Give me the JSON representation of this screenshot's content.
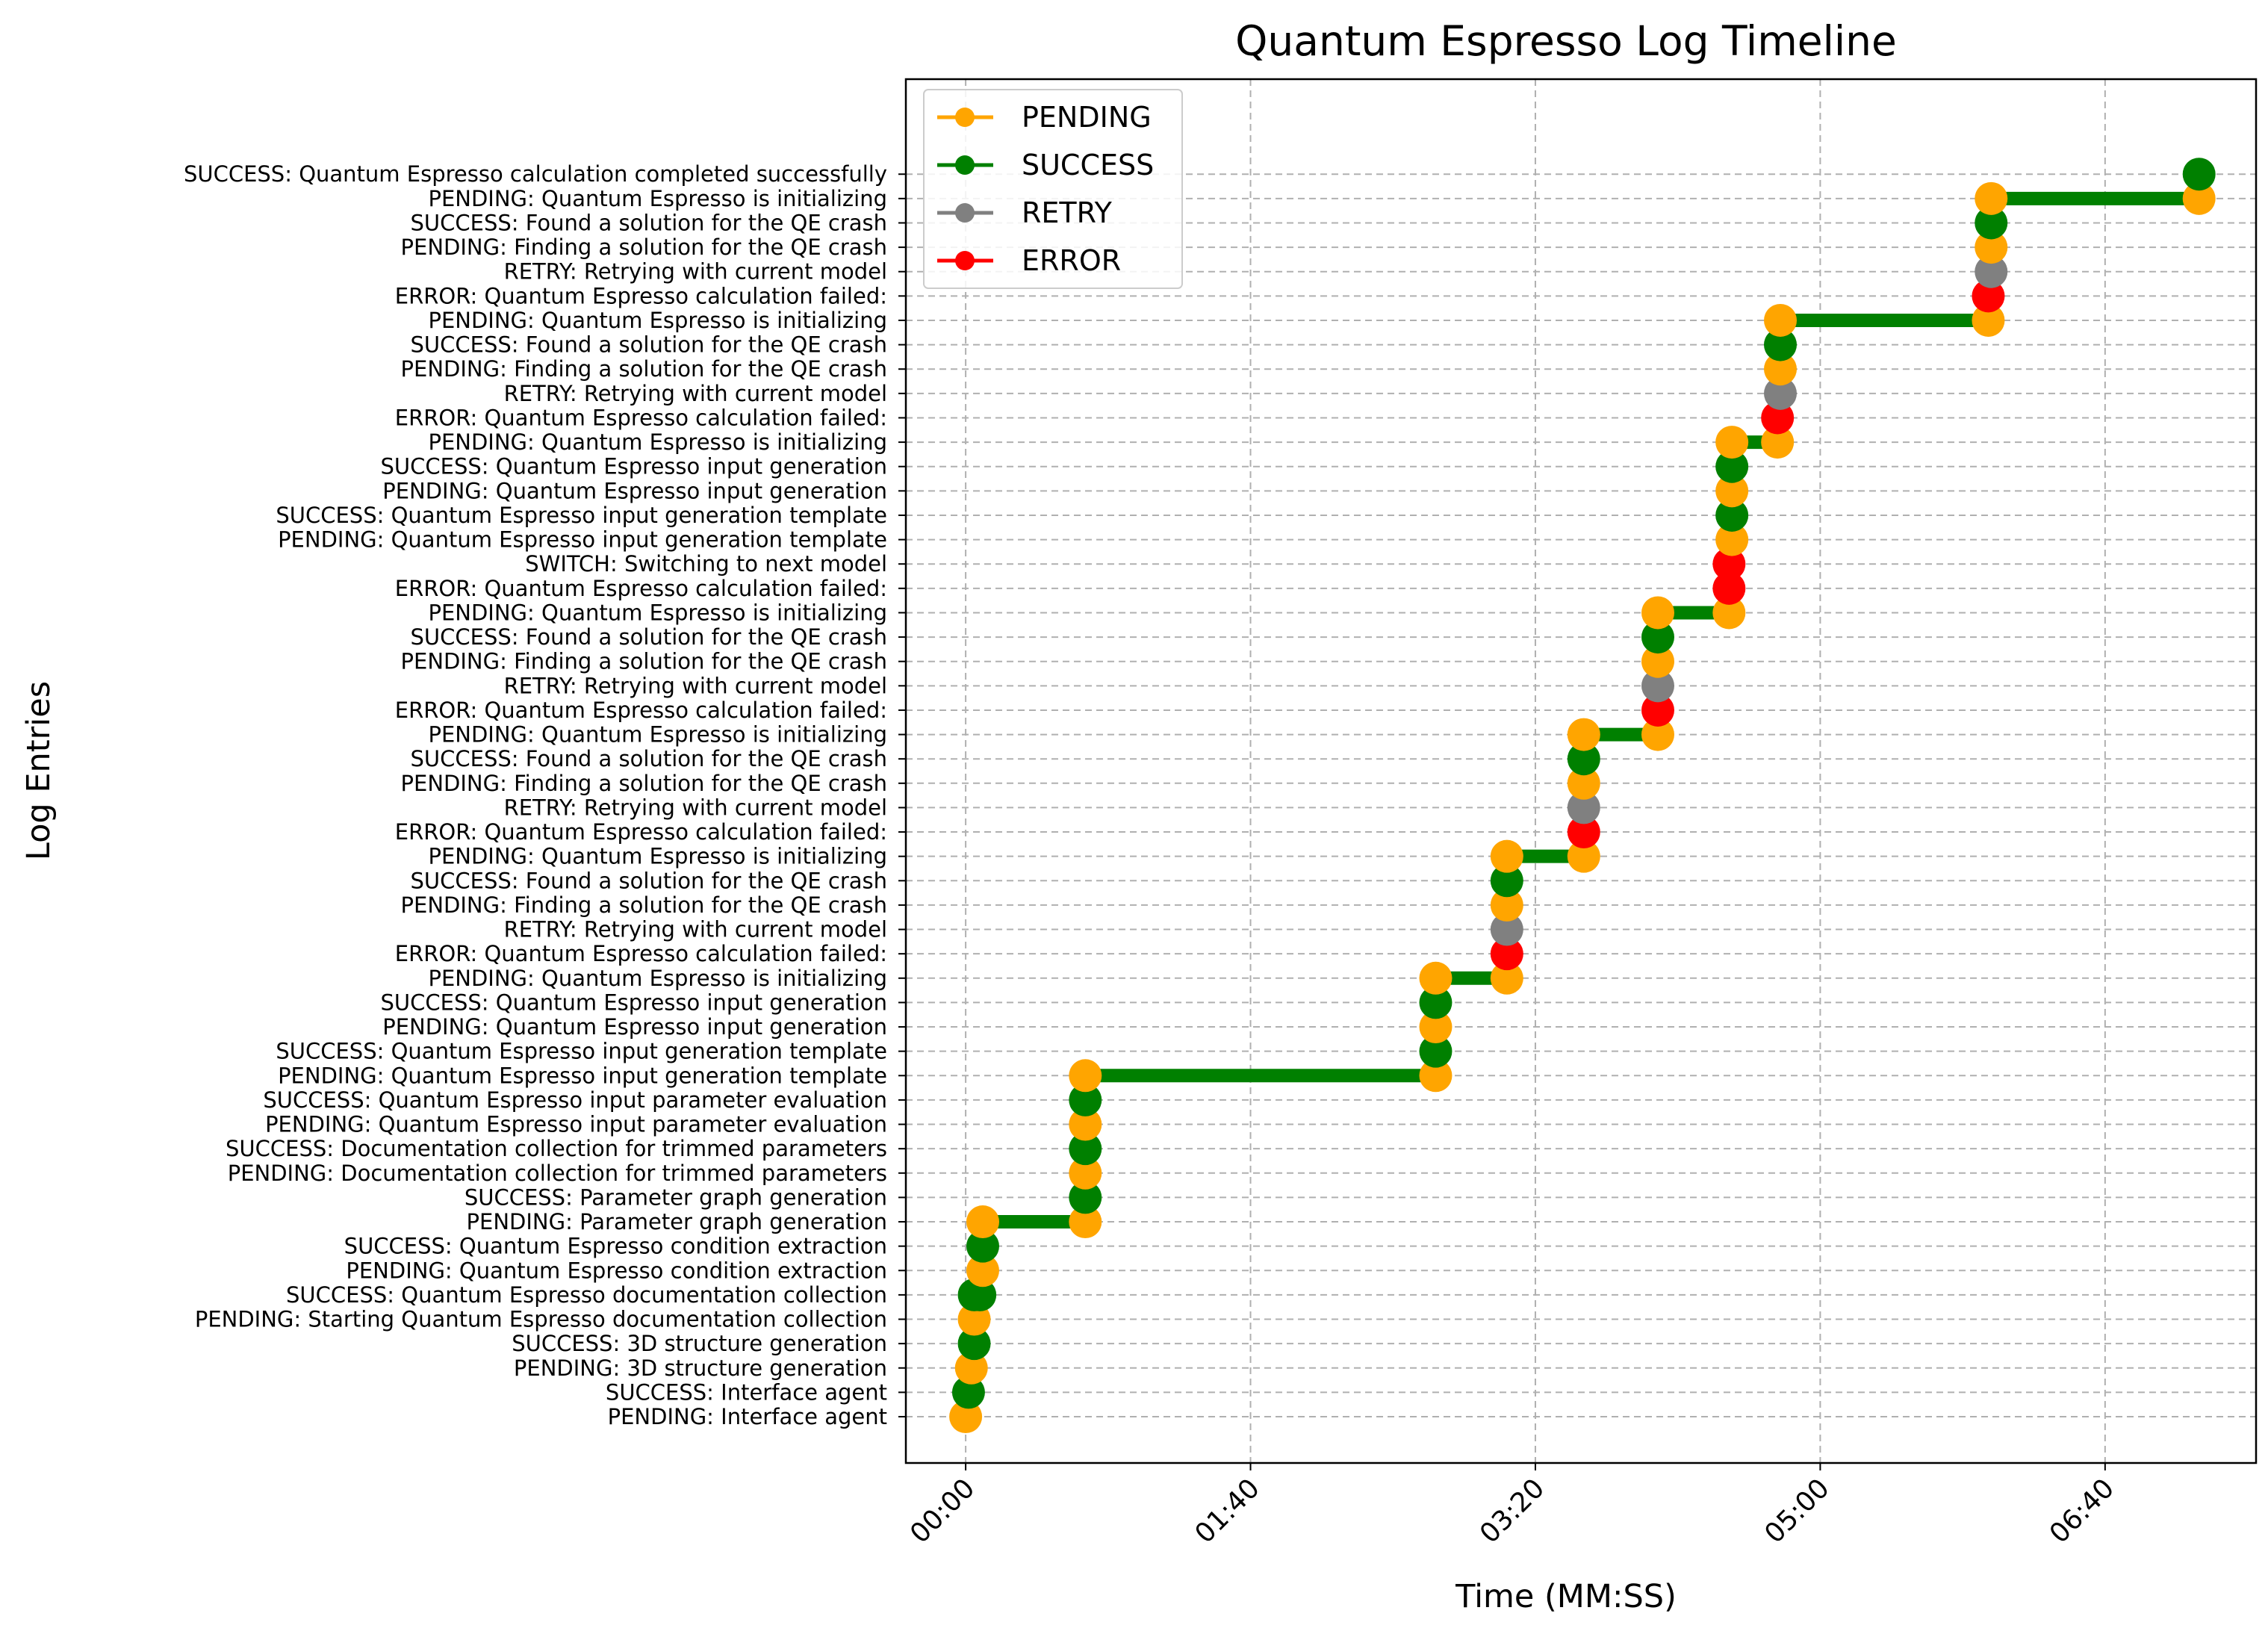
{
  "chart_data": {
    "type": "line",
    "title": "Quantum Espresso Log Timeline",
    "xlabel": "Time (MM:SS)",
    "ylabel": "Log Entries",
    "xlim": [
      -21,
      453
    ],
    "ylim": [
      -1.9,
      54.9
    ],
    "x_ticks": [
      {
        "value": 0,
        "label": "00:00"
      },
      {
        "value": 100,
        "label": "01:40"
      },
      {
        "value": 200,
        "label": "03:20"
      },
      {
        "value": 300,
        "label": "05:00"
      },
      {
        "value": 400,
        "label": "06:40"
      }
    ],
    "grid": true,
    "legend_position": "top-left",
    "status_colors": {
      "PENDING": "#ffa500",
      "SUCCESS": "#008000",
      "RETRY": "#808080",
      "ERROR": "#ff0000",
      "SWITCH": "#ff0000"
    },
    "legend": [
      {
        "label": "PENDING",
        "color": "#ffa500"
      },
      {
        "label": "SUCCESS",
        "color": "#008000"
      },
      {
        "label": "RETRY",
        "color": "#808080"
      },
      {
        "label": "ERROR",
        "color": "#ff0000"
      }
    ],
    "entries": [
      {
        "label": "PENDING: Interface agent",
        "status": "PENDING",
        "x": 0
      },
      {
        "label": "SUCCESS: Interface agent",
        "status": "SUCCESS",
        "x": 1
      },
      {
        "label": "PENDING: 3D structure generation",
        "status": "PENDING",
        "x": 2
      },
      {
        "label": "SUCCESS: 3D structure generation",
        "status": "SUCCESS",
        "x": 3
      },
      {
        "label": "PENDING: Starting Quantum Espresso documentation collection",
        "status": "PENDING",
        "x": 3
      },
      {
        "label": "SUCCESS: Quantum Espresso documentation collection",
        "status": "SUCCESS",
        "x": 5
      },
      {
        "label": "PENDING: Quantum Espresso condition extraction",
        "status": "PENDING",
        "x": 6
      },
      {
        "label": "SUCCESS: Quantum Espresso condition extraction",
        "status": "SUCCESS",
        "x": 6
      },
      {
        "label": "PENDING: Parameter graph generation",
        "status": "PENDING",
        "x": 42
      },
      {
        "label": "SUCCESS: Parameter graph generation",
        "status": "SUCCESS",
        "x": 42
      },
      {
        "label": "PENDING: Documentation collection for trimmed parameters",
        "status": "PENDING",
        "x": 42
      },
      {
        "label": "SUCCESS: Documentation collection for trimmed parameters",
        "status": "SUCCESS",
        "x": 42
      },
      {
        "label": "PENDING: Quantum Espresso input parameter evaluation",
        "status": "PENDING",
        "x": 42
      },
      {
        "label": "SUCCESS: Quantum Espresso input parameter evaluation",
        "status": "SUCCESS",
        "x": 42
      },
      {
        "label": "PENDING: Quantum Espresso input generation template",
        "status": "PENDING",
        "x": 165
      },
      {
        "label": "SUCCESS: Quantum Espresso input generation template",
        "status": "SUCCESS",
        "x": 165
      },
      {
        "label": "PENDING: Quantum Espresso input generation",
        "status": "PENDING",
        "x": 165
      },
      {
        "label": "SUCCESS: Quantum Espresso input generation",
        "status": "SUCCESS",
        "x": 165
      },
      {
        "label": "PENDING: Quantum Espresso is initializing",
        "status": "PENDING",
        "x": 190
      },
      {
        "label": "ERROR: Quantum Espresso calculation failed: ",
        "status": "ERROR",
        "x": 190
      },
      {
        "label": "RETRY: Retrying with current model",
        "status": "RETRY",
        "x": 190
      },
      {
        "label": "PENDING: Finding a solution for the QE crash",
        "status": "PENDING",
        "x": 190
      },
      {
        "label": "SUCCESS: Found a solution for the QE crash",
        "status": "SUCCESS",
        "x": 190
      },
      {
        "label": "PENDING: Quantum Espresso is initializing",
        "status": "PENDING",
        "x": 217
      },
      {
        "label": "ERROR: Quantum Espresso calculation failed: ",
        "status": "ERROR",
        "x": 217
      },
      {
        "label": "RETRY: Retrying with current model",
        "status": "RETRY",
        "x": 217
      },
      {
        "label": "PENDING: Finding a solution for the QE crash",
        "status": "PENDING",
        "x": 217
      },
      {
        "label": "SUCCESS: Found a solution for the QE crash",
        "status": "SUCCESS",
        "x": 217
      },
      {
        "label": "PENDING: Quantum Espresso is initializing",
        "status": "PENDING",
        "x": 243
      },
      {
        "label": "ERROR: Quantum Espresso calculation failed: ",
        "status": "ERROR",
        "x": 243
      },
      {
        "label": "RETRY: Retrying with current model",
        "status": "RETRY",
        "x": 243
      },
      {
        "label": "PENDING: Finding a solution for the QE crash",
        "status": "PENDING",
        "x": 243
      },
      {
        "label": "SUCCESS: Found a solution for the QE crash",
        "status": "SUCCESS",
        "x": 243
      },
      {
        "label": "PENDING: Quantum Espresso is initializing",
        "status": "PENDING",
        "x": 268
      },
      {
        "label": "ERROR: Quantum Espresso calculation failed: ",
        "status": "ERROR",
        "x": 268
      },
      {
        "label": "SWITCH: Switching to next model",
        "status": "SWITCH",
        "x": 268
      },
      {
        "label": "PENDING: Quantum Espresso input generation template",
        "status": "PENDING",
        "x": 269
      },
      {
        "label": "SUCCESS: Quantum Espresso input generation template",
        "status": "SUCCESS",
        "x": 269
      },
      {
        "label": "PENDING: Quantum Espresso input generation",
        "status": "PENDING",
        "x": 269
      },
      {
        "label": "SUCCESS: Quantum Espresso input generation",
        "status": "SUCCESS",
        "x": 269
      },
      {
        "label": "PENDING: Quantum Espresso is initializing",
        "status": "PENDING",
        "x": 285
      },
      {
        "label": "ERROR: Quantum Espresso calculation failed: ",
        "status": "ERROR",
        "x": 285
      },
      {
        "label": "RETRY: Retrying with current model",
        "status": "RETRY",
        "x": 286
      },
      {
        "label": "PENDING: Finding a solution for the QE crash",
        "status": "PENDING",
        "x": 286
      },
      {
        "label": "SUCCESS: Found a solution for the QE crash",
        "status": "SUCCESS",
        "x": 286
      },
      {
        "label": "PENDING: Quantum Espresso is initializing",
        "status": "PENDING",
        "x": 359
      },
      {
        "label": "ERROR: Quantum Espresso calculation failed: ",
        "status": "ERROR",
        "x": 359
      },
      {
        "label": "RETRY: Retrying with current model",
        "status": "RETRY",
        "x": 360
      },
      {
        "label": "PENDING: Finding a solution for the QE crash",
        "status": "PENDING",
        "x": 360
      },
      {
        "label": "SUCCESS: Found a solution for the QE crash",
        "status": "SUCCESS",
        "x": 360
      },
      {
        "label": "PENDING: Quantum Espresso is initializing",
        "status": "PENDING",
        "x": 433
      },
      {
        "label": "SUCCESS: Quantum Espresso calculation completed successfully",
        "status": "SUCCESS",
        "x": 433
      }
    ]
  }
}
